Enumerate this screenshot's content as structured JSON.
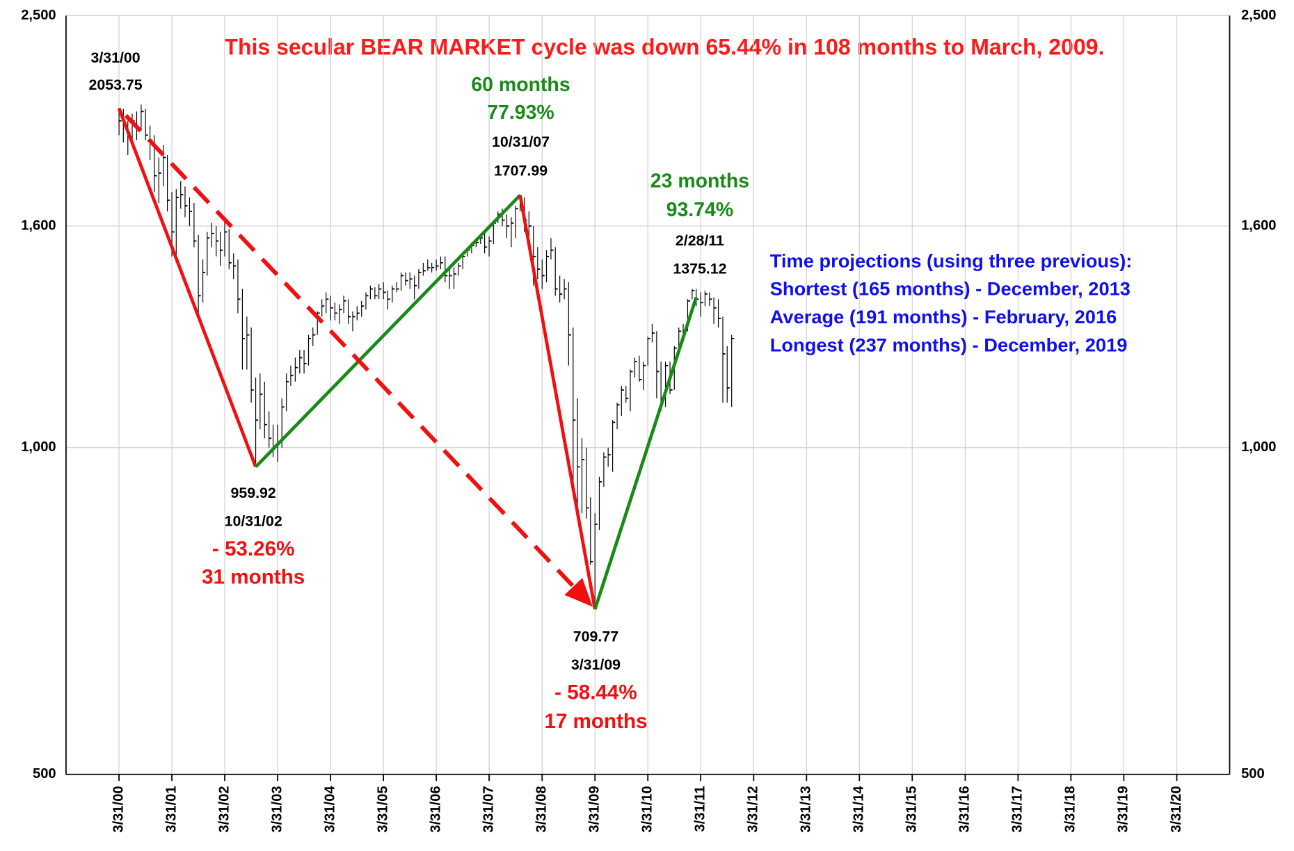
{
  "chart_data": {
    "type": "ohlc",
    "title": "This secular BEAR MARKET cycle was down 65.44% in 108 months to March, 2009.",
    "title_color": "#ff1a1a",
    "log_scale": true,
    "grid": true,
    "bar_color": "#000000",
    "ylim": [
      500,
      2500
    ],
    "yticks": [
      500,
      {
        "value": 1000,
        "label": "1,000"
      },
      {
        "value": 1600,
        "label": "1,600"
      },
      {
        "value": 2500,
        "label": "2,500"
      }
    ],
    "xlim": [
      "3/31/99",
      "3/31/21"
    ],
    "xticks": [
      "3/31/00",
      "3/31/01",
      "3/31/02",
      "3/31/03",
      "3/31/04",
      "3/31/05",
      "3/31/06",
      "3/31/07",
      "3/31/08",
      "3/31/09",
      "3/31/10",
      "3/31/11",
      "3/31/12",
      "3/31/13",
      "3/31/14",
      "3/31/15",
      "3/31/16",
      "3/31/17",
      "3/31/18",
      "3/31/19",
      "3/31/20"
    ],
    "x": [
      "3/31/00",
      "4/30/00",
      "5/31/00",
      "6/30/00",
      "7/31/00",
      "8/31/00",
      "9/30/00",
      "10/31/00",
      "11/30/00",
      "12/31/00",
      "1/31/01",
      "2/28/01",
      "3/31/01",
      "4/30/01",
      "5/31/01",
      "6/30/01",
      "7/31/01",
      "8/31/01",
      "9/30/01",
      "10/31/01",
      "11/30/01",
      "12/31/01",
      "1/31/02",
      "2/28/02",
      "3/31/02",
      "4/30/02",
      "5/31/02",
      "6/30/02",
      "7/31/02",
      "8/31/02",
      "9/30/02",
      "10/31/02",
      "11/30/02",
      "12/31/02",
      "1/31/03",
      "2/28/03",
      "3/31/03",
      "4/30/03",
      "5/31/03",
      "6/30/03",
      "7/31/03",
      "8/31/03",
      "9/30/03",
      "10/31/03",
      "11/30/03",
      "12/31/03",
      "1/31/04",
      "2/29/04",
      "3/31/04",
      "4/30/04",
      "5/31/04",
      "6/30/04",
      "7/31/04",
      "8/31/04",
      "9/30/04",
      "10/31/04",
      "11/30/04",
      "12/31/04",
      "1/31/05",
      "2/28/05",
      "3/31/05",
      "4/30/05",
      "5/31/05",
      "6/30/05",
      "7/31/05",
      "8/31/05",
      "9/30/05",
      "10/31/05",
      "11/30/05",
      "12/31/05",
      "1/31/06",
      "2/28/06",
      "3/31/06",
      "4/30/06",
      "5/31/06",
      "6/30/06",
      "7/31/06",
      "8/31/06",
      "9/30/06",
      "10/31/06",
      "11/30/06",
      "12/31/06",
      "1/31/07",
      "2/28/07",
      "3/31/07",
      "4/30/07",
      "5/31/07",
      "6/30/07",
      "7/31/07",
      "8/31/07",
      "9/30/07",
      "10/31/07",
      "11/30/07",
      "12/31/07",
      "1/31/08",
      "2/29/08",
      "3/31/08",
      "4/30/08",
      "5/31/08",
      "6/30/08",
      "7/31/08",
      "8/31/08",
      "9/30/08",
      "10/31/08",
      "11/30/08",
      "12/31/08",
      "1/31/09",
      "2/28/09",
      "3/31/09",
      "4/30/09",
      "5/31/09",
      "6/30/09",
      "7/31/09",
      "8/31/09",
      "9/30/09",
      "10/31/09",
      "11/30/09",
      "12/31/09",
      "1/31/10",
      "2/28/10",
      "3/31/10",
      "4/30/10",
      "5/31/10",
      "6/30/10",
      "7/31/10",
      "8/31/10",
      "9/30/10",
      "10/31/10",
      "11/30/10",
      "12/31/10",
      "1/31/11",
      "2/28/11",
      "3/31/11",
      "4/30/11",
      "5/31/11",
      "6/30/11",
      "7/31/11",
      "8/31/11",
      "9/30/11",
      "10/31/11"
    ],
    "high": [
      2054,
      2050,
      2000,
      2030,
      2040,
      2070,
      2050,
      1980,
      1940,
      1850,
      1900,
      1860,
      1720,
      1730,
      1760,
      1740,
      1700,
      1680,
      1570,
      1490,
      1580,
      1610,
      1600,
      1580,
      1620,
      1590,
      1510,
      1490,
      1400,
      1320,
      1290,
      1160,
      1170,
      1150,
      1080,
      1050,
      1050,
      1110,
      1170,
      1190,
      1210,
      1230,
      1230,
      1270,
      1290,
      1335,
      1370,
      1390,
      1380,
      1360,
      1355,
      1380,
      1370,
      1335,
      1350,
      1365,
      1390,
      1410,
      1405,
      1415,
      1420,
      1395,
      1410,
      1420,
      1450,
      1450,
      1450,
      1440,
      1460,
      1480,
      1490,
      1480,
      1490,
      1500,
      1500,
      1460,
      1465,
      1480,
      1505,
      1530,
      1545,
      1560,
      1575,
      1580,
      1565,
      1620,
      1650,
      1660,
      1640,
      1630,
      1670,
      1710,
      1700,
      1650,
      1600,
      1530,
      1490,
      1520,
      1560,
      1530,
      1440,
      1430,
      1420,
      1290,
      1110,
      1020,
      1000,
      900,
      870,
      940,
      990,
      1000,
      1060,
      1100,
      1140,
      1140,
      1180,
      1210,
      1215,
      1200,
      1265,
      1300,
      1280,
      1200,
      1200,
      1200,
      1240,
      1290,
      1300,
      1370,
      1400,
      1400,
      1390,
      1395,
      1390,
      1375,
      1370,
      1320,
      1240,
      1270
    ],
    "low": [
      1940,
      1910,
      1860,
      1910,
      1920,
      1960,
      1920,
      1840,
      1720,
      1680,
      1740,
      1650,
      1500,
      1480,
      1660,
      1630,
      1600,
      1530,
      1320,
      1360,
      1440,
      1530,
      1500,
      1470,
      1500,
      1460,
      1430,
      1330,
      1180,
      1180,
      1100,
      960,
      1040,
      1020,
      1000,
      980,
      970,
      1000,
      1080,
      1140,
      1150,
      1170,
      1170,
      1190,
      1240,
      1270,
      1320,
      1330,
      1310,
      1310,
      1300,
      1330,
      1300,
      1280,
      1310,
      1320,
      1340,
      1370,
      1370,
      1370,
      1370,
      1340,
      1360,
      1390,
      1395,
      1410,
      1400,
      1370,
      1400,
      1440,
      1455,
      1450,
      1455,
      1460,
      1420,
      1400,
      1400,
      1440,
      1460,
      1500,
      1510,
      1530,
      1540,
      1510,
      1500,
      1540,
      1610,
      1600,
      1560,
      1530,
      1560,
      1650,
      1580,
      1560,
      1410,
      1430,
      1400,
      1420,
      1490,
      1380,
      1360,
      1370,
      1190,
      930,
      860,
      870,
      860,
      780,
      710,
      840,
      920,
      960,
      950,
      1040,
      1070,
      1100,
      1080,
      1160,
      1150,
      1130,
      1190,
      1250,
      1110,
      1080,
      1090,
      1120,
      1130,
      1230,
      1250,
      1280,
      1370,
      1350,
      1320,
      1350,
      1350,
      1300,
      1290,
      1100,
      1100,
      1090
    ],
    "close": [
      2000,
      1990,
      1950,
      2000,
      1970,
      2040,
      1940,
      1920,
      1780,
      1790,
      1850,
      1690,
      1580,
      1700,
      1710,
      1670,
      1650,
      1550,
      1380,
      1450,
      1560,
      1575,
      1550,
      1520,
      1580,
      1480,
      1470,
      1370,
      1260,
      1270,
      1130,
      1060,
      1120,
      1050,
      1020,
      1000,
      1010,
      1090,
      1150,
      1165,
      1185,
      1210,
      1195,
      1260,
      1270,
      1330,
      1350,
      1370,
      1345,
      1330,
      1340,
      1365,
      1320,
      1320,
      1330,
      1350,
      1380,
      1400,
      1380,
      1400,
      1390,
      1370,
      1400,
      1400,
      1440,
      1425,
      1430,
      1410,
      1450,
      1455,
      1465,
      1465,
      1470,
      1480,
      1440,
      1440,
      1445,
      1470,
      1500,
      1520,
      1535,
      1545,
      1560,
      1530,
      1550,
      1610,
      1640,
      1620,
      1600,
      1610,
      1660,
      1690,
      1620,
      1600,
      1500,
      1460,
      1440,
      1500,
      1520,
      1400,
      1385,
      1400,
      1270,
      1060,
      960,
      975,
      880,
      785,
      850,
      930,
      980,
      985,
      1055,
      1095,
      1130,
      1110,
      1175,
      1200,
      1155,
      1190,
      1260,
      1275,
      1175,
      1110,
      1190,
      1130,
      1235,
      1280,
      1280,
      1365,
      1395,
      1370,
      1360,
      1385,
      1370,
      1345,
      1315,
      1220,
      1135,
      1260
    ],
    "pivots": [
      {
        "date": "3/31/00",
        "value": 2053.75
      },
      {
        "date": "10/31/02",
        "value": 959.92,
        "change": "- 53.26%",
        "duration": "31 months",
        "color": "#f01010"
      },
      {
        "date": "10/31/07",
        "value": 1707.99,
        "change": "77.93%",
        "duration": "60 months",
        "color": "#178a17"
      },
      {
        "date": "3/31/09",
        "value": 709.77,
        "change": "- 58.44%",
        "duration": "17 months",
        "color": "#f01010"
      },
      {
        "date": "2/28/11",
        "value": 1375.12,
        "change": "93.74%",
        "duration": "23 months",
        "color": "#178a17"
      }
    ],
    "cycle_arrow_color": "#f01010",
    "projections": [
      "Time projections (using three previous):",
      "Shortest (165 months) - December, 2013",
      "Average (191 months) - February, 2016",
      "Longest (237 months) - December, 2019"
    ],
    "projections_color": "#1010ee"
  }
}
